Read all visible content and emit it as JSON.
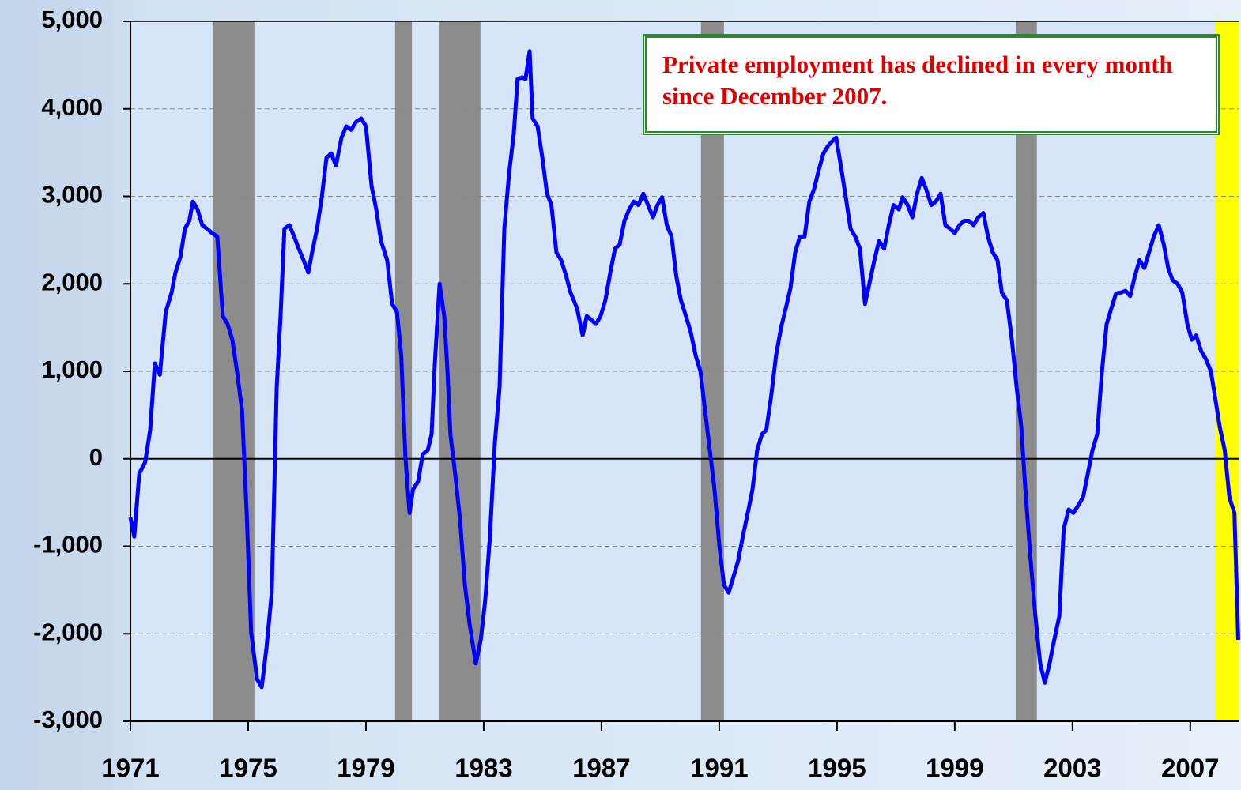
{
  "chart_data": {
    "type": "line",
    "annotation": "Private employment has declined in every month since December 2007.",
    "x": [
      1971.0,
      1971.13,
      1971.3,
      1971.5,
      1971.67,
      1971.83,
      1972.0,
      1972.2,
      1972.4,
      1972.53,
      1972.7,
      1972.85,
      1973.0,
      1973.12,
      1973.28,
      1973.44,
      1973.6,
      1973.77,
      1973.95,
      1974.14,
      1974.3,
      1974.46,
      1974.62,
      1974.79,
      1974.95,
      1975.1,
      1975.3,
      1975.46,
      1975.62,
      1975.8,
      1975.97,
      1976.1,
      1976.23,
      1976.4,
      1976.56,
      1976.72,
      1976.88,
      1977.04,
      1977.17,
      1977.34,
      1977.5,
      1977.66,
      1977.82,
      1977.98,
      1978.17,
      1978.33,
      1978.5,
      1978.66,
      1978.84,
      1979.0,
      1979.19,
      1979.35,
      1979.51,
      1979.72,
      1979.89,
      1980.05,
      1980.2,
      1980.34,
      1980.48,
      1980.6,
      1980.77,
      1980.93,
      1981.1,
      1981.23,
      1981.34,
      1981.5,
      1981.66,
      1981.77,
      1981.87,
      1982.03,
      1982.2,
      1982.36,
      1982.52,
      1982.73,
      1982.9,
      1983.05,
      1983.21,
      1983.38,
      1983.54,
      1983.7,
      1983.86,
      1984.02,
      1984.15,
      1984.3,
      1984.42,
      1984.56,
      1984.66,
      1984.83,
      1984.99,
      1985.15,
      1985.3,
      1985.47,
      1985.63,
      1985.8,
      1985.95,
      1986.17,
      1986.36,
      1986.5,
      1986.65,
      1986.81,
      1986.97,
      1987.13,
      1987.3,
      1987.46,
      1987.62,
      1987.78,
      1987.94,
      1988.1,
      1988.26,
      1988.42,
      1988.58,
      1988.75,
      1988.9,
      1989.06,
      1989.22,
      1989.38,
      1989.54,
      1989.7,
      1989.87,
      1990.03,
      1990.2,
      1990.36,
      1990.52,
      1990.68,
      1990.84,
      1991.0,
      1991.16,
      1991.32,
      1991.48,
      1991.64,
      1991.8,
      1991.97,
      1992.13,
      1992.29,
      1992.45,
      1992.6,
      1992.77,
      1992.93,
      1993.1,
      1993.26,
      1993.42,
      1993.58,
      1993.74,
      1993.9,
      1994.06,
      1994.22,
      1994.38,
      1994.54,
      1994.7,
      1994.87,
      1994.97,
      1995.13,
      1995.3,
      1995.46,
      1995.62,
      1995.78,
      1995.95,
      1996.1,
      1996.27,
      1996.43,
      1996.6,
      1996.76,
      1996.92,
      1997.1,
      1997.23,
      1997.4,
      1997.56,
      1997.72,
      1997.88,
      1998.03,
      1998.2,
      1998.36,
      1998.52,
      1998.68,
      1998.84,
      1999.0,
      1999.16,
      1999.32,
      1999.48,
      1999.64,
      1999.8,
      1999.97,
      2000.13,
      2000.29,
      2000.45,
      2000.6,
      2000.77,
      2000.94,
      2001.1,
      2001.26,
      2001.4,
      2001.58,
      2001.74,
      2001.9,
      2002.06,
      2002.22,
      2002.38,
      2002.55,
      2002.7,
      2002.87,
      2003.03,
      2003.2,
      2003.36,
      2003.52,
      2003.68,
      2003.84,
      2004.0,
      2004.16,
      2004.32,
      2004.48,
      2004.65,
      2004.8,
      2004.96,
      2005.12,
      2005.28,
      2005.44,
      2005.6,
      2005.76,
      2005.93,
      2006.1,
      2006.25,
      2006.4,
      2006.57,
      2006.73,
      2006.9,
      2007.05,
      2007.2,
      2007.37,
      2007.53,
      2007.7,
      2007.85,
      2008.0,
      2008.17,
      2008.33,
      2008.5,
      2008.63
    ],
    "values": [
      -670,
      -890,
      -170,
      -40,
      330,
      1090,
      960,
      1680,
      1900,
      2130,
      2310,
      2630,
      2720,
      2940,
      2850,
      2670,
      2630,
      2580,
      2540,
      1630,
      1540,
      1360,
      1000,
      550,
      -620,
      -1980,
      -2520,
      -2610,
      -2160,
      -1530,
      820,
      1630,
      2630,
      2670,
      2540,
      2400,
      2270,
      2130,
      2360,
      2630,
      2990,
      3440,
      3490,
      3350,
      3670,
      3800,
      3760,
      3850,
      3890,
      3800,
      3120,
      2850,
      2490,
      2270,
      1770,
      1680,
      1180,
      10,
      -620,
      -350,
      -260,
      50,
      100,
      280,
      1090,
      2000,
      1630,
      1000,
      280,
      -170,
      -710,
      -1440,
      -1890,
      -2340,
      -2070,
      -1620,
      -890,
      190,
      820,
      2630,
      3260,
      3710,
      4340,
      4360,
      4340,
      4660,
      3890,
      3800,
      3440,
      3030,
      2900,
      2360,
      2270,
      2090,
      1900,
      1720,
      1410,
      1630,
      1590,
      1540,
      1630,
      1810,
      2130,
      2400,
      2450,
      2720,
      2850,
      2940,
      2900,
      3030,
      2900,
      2760,
      2900,
      2990,
      2670,
      2540,
      2090,
      1810,
      1630,
      1450,
      1180,
      1000,
      550,
      100,
      -350,
      -980,
      -1440,
      -1530,
      -1350,
      -1170,
      -890,
      -620,
      -350,
      100,
      280,
      330,
      730,
      1180,
      1500,
      1720,
      1950,
      2360,
      2540,
      2540,
      2940,
      3080,
      3300,
      3490,
      3580,
      3640,
      3670,
      3350,
      2990,
      2630,
      2540,
      2400,
      1770,
      2000,
      2270,
      2490,
      2400,
      2670,
      2900,
      2850,
      2990,
      2900,
      2760,
      3030,
      3210,
      3080,
      2900,
      2940,
      3030,
      2670,
      2630,
      2580,
      2670,
      2720,
      2720,
      2670,
      2760,
      2810,
      2540,
      2360,
      2270,
      1900,
      1810,
      1360,
      820,
      370,
      -350,
      -1170,
      -1800,
      -2340,
      -2560,
      -2340,
      -2070,
      -1800,
      -800,
      -580,
      -620,
      -530,
      -440,
      -170,
      100,
      280,
      1000,
      1540,
      1720,
      1890,
      1900,
      1920,
      1860,
      2090,
      2270,
      2180,
      2360,
      2540,
      2670,
      2450,
      2180,
      2040,
      2000,
      1900,
      1540,
      1360,
      1410,
      1230,
      1140,
      1000,
      690,
      370,
      100,
      -440,
      -620,
      -2070
    ],
    "color": "#0000ff",
    "shaded_periods": [
      [
        1973.82,
        1975.21
      ],
      [
        1979.99,
        1980.56
      ],
      [
        1981.47,
        1982.89
      ],
      [
        1990.38,
        1991.16
      ],
      [
        2001.07,
        2001.79
      ]
    ],
    "shade_color": "#8c8c8c",
    "highlight_period": [
      2007.86,
      2008.67
    ],
    "highlight_color": "#ffff00",
    "xlim": [
      1971,
      2008.67
    ],
    "xticks": [
      1971,
      1975,
      1979,
      1983,
      1987,
      1991,
      1995,
      1999,
      2003,
      2007
    ],
    "ylim": [
      -3000,
      5000
    ],
    "yticks": [
      {
        "value": -3000,
        "label": "-3,000"
      },
      {
        "value": -2000,
        "label": "-2,000"
      },
      {
        "value": -1000,
        "label": "-1,000"
      },
      0,
      {
        "value": 1000,
        "label": "1,000"
      },
      {
        "value": 2000,
        "label": "2,000"
      },
      {
        "value": 3000,
        "label": "3,000"
      },
      {
        "value": 4000,
        "label": "4,000"
      },
      {
        "value": 5000,
        "label": "5,000"
      }
    ],
    "grid": true
  }
}
